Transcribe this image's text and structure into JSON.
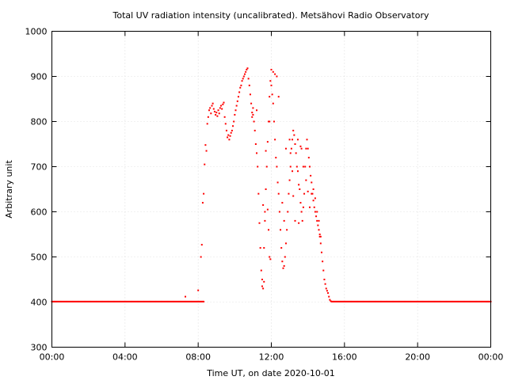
{
  "chart_data": {
    "type": "scatter",
    "title": "Total UV radiation intensity (uncalibrated). Metsähovi Radio Observatory",
    "xlabel": "Time UT, on date 2020-10-01",
    "ylabel": "Arbitrary unit",
    "xlim": [
      0,
      24
    ],
    "ylim": [
      300,
      1000
    ],
    "x_ticks": [
      {
        "value": 0,
        "label": "00:00"
      },
      {
        "value": 4,
        "label": "04:00"
      },
      {
        "value": 8,
        "label": "08:00"
      },
      {
        "value": 12,
        "label": "12:00"
      },
      {
        "value": 16,
        "label": "16:00"
      },
      {
        "value": 20,
        "label": "20:00"
      },
      {
        "value": 24,
        "label": "00:00"
      }
    ],
    "y_ticks": [
      {
        "value": 300,
        "label": "300"
      },
      {
        "value": 400,
        "label": "400"
      },
      {
        "value": 500,
        "label": "500"
      },
      {
        "value": 600,
        "label": "600"
      },
      {
        "value": 700,
        "label": "700"
      },
      {
        "value": 800,
        "label": "800"
      },
      {
        "value": 900,
        "label": "900"
      },
      {
        "value": 1000,
        "label": "1000"
      }
    ],
    "grid": true,
    "marker_color": "#ff0000",
    "series": [
      {
        "baseline_value": 401,
        "baseline_ranges": [
          [
            0,
            8.3
          ],
          [
            15.3,
            24
          ]
        ],
        "points": [
          [
            7.3,
            412
          ],
          [
            8.0,
            426
          ],
          [
            8.15,
            500
          ],
          [
            8.2,
            527
          ],
          [
            8.25,
            620
          ],
          [
            8.3,
            640
          ],
          [
            8.35,
            705
          ],
          [
            8.4,
            748
          ],
          [
            8.45,
            735
          ],
          [
            8.5,
            795
          ],
          [
            8.55,
            810
          ],
          [
            8.6,
            825
          ],
          [
            8.65,
            830
          ],
          [
            8.7,
            818
          ],
          [
            8.75,
            835
          ],
          [
            8.8,
            840
          ],
          [
            8.85,
            828
          ],
          [
            8.9,
            822
          ],
          [
            8.95,
            815
          ],
          [
            9.0,
            820
          ],
          [
            9.05,
            812
          ],
          [
            9.1,
            825
          ],
          [
            9.15,
            818
          ],
          [
            9.2,
            830
          ],
          [
            9.25,
            835
          ],
          [
            9.3,
            828
          ],
          [
            9.35,
            838
          ],
          [
            9.4,
            842
          ],
          [
            9.45,
            810
          ],
          [
            9.5,
            795
          ],
          [
            9.55,
            780
          ],
          [
            9.6,
            765
          ],
          [
            9.65,
            770
          ],
          [
            9.7,
            760
          ],
          [
            9.75,
            768
          ],
          [
            9.8,
            775
          ],
          [
            9.85,
            780
          ],
          [
            9.9,
            790
          ],
          [
            9.95,
            800
          ],
          [
            10.0,
            815
          ],
          [
            10.05,
            825
          ],
          [
            10.1,
            835
          ],
          [
            10.15,
            845
          ],
          [
            10.2,
            855
          ],
          [
            10.25,
            865
          ],
          [
            10.3,
            875
          ],
          [
            10.35,
            880
          ],
          [
            10.4,
            890
          ],
          [
            10.45,
            895
          ],
          [
            10.5,
            900
          ],
          [
            10.55,
            905
          ],
          [
            10.6,
            910
          ],
          [
            10.65,
            915
          ],
          [
            10.7,
            918
          ],
          [
            10.75,
            895
          ],
          [
            10.8,
            880
          ],
          [
            10.85,
            860
          ],
          [
            10.9,
            840
          ],
          [
            10.95,
            820
          ],
          [
            11.0,
            815
          ],
          [
            11.05,
            800
          ],
          [
            11.1,
            780
          ],
          [
            11.15,
            750
          ],
          [
            11.2,
            730
          ],
          [
            11.25,
            700
          ],
          [
            11.3,
            640
          ],
          [
            11.35,
            575
          ],
          [
            11.4,
            520
          ],
          [
            11.45,
            470
          ],
          [
            11.5,
            435
          ],
          [
            11.55,
            430
          ],
          [
            11.6,
            520
          ],
          [
            11.65,
            600
          ],
          [
            11.7,
            650
          ],
          [
            11.75,
            700
          ],
          [
            11.8,
            755
          ],
          [
            11.85,
            800
          ],
          [
            11.9,
            855
          ],
          [
            11.95,
            890
          ],
          [
            12.0,
            880
          ],
          [
            12.05,
            860
          ],
          [
            12.1,
            840
          ],
          [
            12.15,
            800
          ],
          [
            12.2,
            760
          ],
          [
            12.25,
            720
          ],
          [
            12.3,
            700
          ],
          [
            12.35,
            665
          ],
          [
            12.4,
            640
          ],
          [
            12.45,
            600
          ],
          [
            12.5,
            560
          ],
          [
            12.55,
            520
          ],
          [
            12.6,
            490
          ],
          [
            12.65,
            475
          ],
          [
            12.7,
            480
          ],
          [
            12.75,
            500
          ],
          [
            12.8,
            530
          ],
          [
            12.85,
            560
          ],
          [
            12.9,
            600
          ],
          [
            12.95,
            640
          ],
          [
            13.0,
            670
          ],
          [
            13.05,
            700
          ],
          [
            13.1,
            740
          ],
          [
            13.15,
            760
          ],
          [
            13.2,
            780
          ],
          [
            13.25,
            770
          ],
          [
            13.3,
            750
          ],
          [
            13.35,
            730
          ],
          [
            13.4,
            700
          ],
          [
            13.45,
            690
          ],
          [
            13.5,
            660
          ],
          [
            13.55,
            650
          ],
          [
            13.6,
            620
          ],
          [
            13.65,
            600
          ],
          [
            13.7,
            580
          ],
          [
            13.75,
            610
          ],
          [
            13.8,
            640
          ],
          [
            13.85,
            700
          ],
          [
            13.9,
            740
          ],
          [
            13.95,
            760
          ],
          [
            14.0,
            740
          ],
          [
            14.05,
            720
          ],
          [
            14.1,
            700
          ],
          [
            14.15,
            680
          ],
          [
            14.2,
            665
          ],
          [
            14.25,
            640
          ],
          [
            14.3,
            625
          ],
          [
            14.35,
            610
          ],
          [
            14.4,
            600
          ],
          [
            14.45,
            590
          ],
          [
            14.5,
            580
          ],
          [
            14.55,
            570
          ],
          [
            14.6,
            560
          ],
          [
            14.65,
            545
          ],
          [
            14.7,
            530
          ],
          [
            14.75,
            510
          ],
          [
            14.8,
            490
          ],
          [
            14.85,
            470
          ],
          [
            14.9,
            450
          ],
          [
            14.95,
            440
          ],
          [
            15.0,
            430
          ],
          [
            15.05,
            425
          ],
          [
            15.1,
            420
          ],
          [
            15.15,
            412
          ],
          [
            15.2,
            405
          ],
          [
            15.25,
            402
          ],
          [
            11.0,
            830
          ],
          [
            11.2,
            825
          ],
          [
            10.95,
            810
          ],
          [
            11.7,
            735
          ],
          [
            11.9,
            800
          ],
          [
            12.0,
            915
          ],
          [
            12.1,
            910
          ],
          [
            12.2,
            905
          ],
          [
            12.3,
            900
          ],
          [
            12.4,
            855
          ],
          [
            11.8,
            605
          ],
          [
            11.85,
            560
          ],
          [
            11.9,
            500
          ],
          [
            11.95,
            495
          ],
          [
            12.6,
            620
          ],
          [
            12.7,
            580
          ],
          [
            13.0,
            760
          ],
          [
            13.05,
            730
          ],
          [
            13.15,
            690
          ],
          [
            13.2,
            635
          ],
          [
            13.3,
            580
          ],
          [
            13.45,
            760
          ],
          [
            13.6,
            745
          ],
          [
            13.75,
            700
          ],
          [
            13.9,
            670
          ],
          [
            14.0,
            645
          ],
          [
            14.1,
            610
          ],
          [
            14.2,
            640
          ],
          [
            14.3,
            650
          ],
          [
            14.4,
            630
          ],
          [
            14.5,
            600
          ],
          [
            14.6,
            580
          ],
          [
            14.65,
            550
          ],
          [
            14.7,
            545
          ],
          [
            11.5,
            450
          ],
          [
            11.6,
            445
          ],
          [
            11.55,
            615
          ],
          [
            11.65,
            580
          ],
          [
            12.8,
            740
          ],
          [
            13.5,
            575
          ],
          [
            13.65,
            740
          ]
        ]
      }
    ]
  }
}
